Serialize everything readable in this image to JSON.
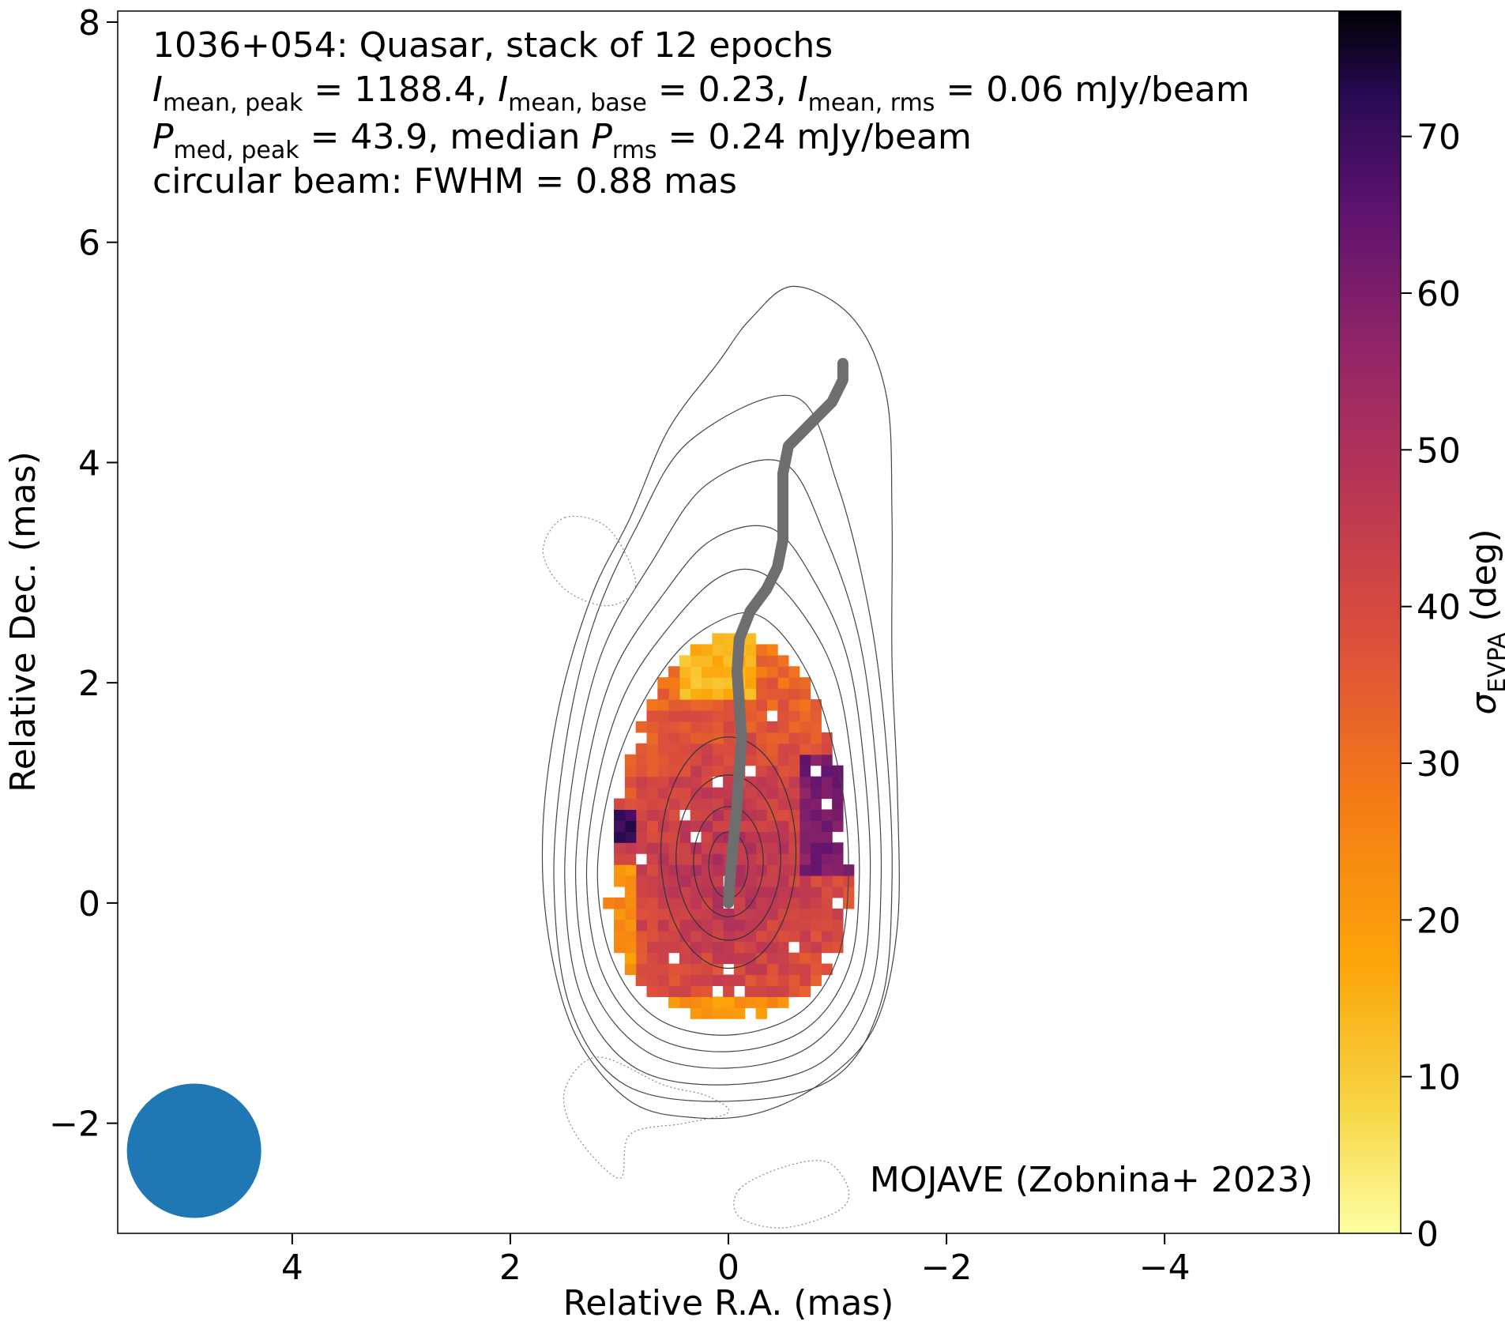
{
  "chart_data": {
    "type": "heatmap",
    "title": "",
    "source": "1036+054: Quasar, stack of 12 epochs",
    "stats": {
      "I_mean_peak": "1188.4",
      "I_mean_base": "0.23",
      "I_mean_rms": "0.06",
      "P_med_peak": "43.9",
      "P_rms_median": "0.24",
      "unit": "mJy/beam",
      "beam_text": "circular beam: FWHM = 0.88 mas"
    },
    "labels": {
      "line2_prefix": "I",
      "line2_sub1": "mean, peak",
      "line2_eq1": " = 1188.4, ",
      "line2_i2": "I",
      "line2_sub2": "mean, base",
      "line2_eq2": " = 0.23, ",
      "line2_i3": "I",
      "line2_sub3": "mean, rms",
      "line2_eq3": " = 0.06 mJy/beam",
      "line3_p1": "P",
      "line3_sub1": "med, peak",
      "line3_eq1": " = 43.9, median ",
      "line3_p2": "P",
      "line3_sub2": "rms",
      "line3_eq2": " = 0.24 mJy/beam"
    },
    "credit": "MOJAVE (Zobnina+ 2023)",
    "xlabel": "Relative R.A. (mas)",
    "ylabel": "Relative Dec. (mas)",
    "colorbar": {
      "label_symbol": "σ",
      "label_sub": "EVPA",
      "label_unit": " (deg)",
      "range": [
        0,
        78
      ],
      "ticks": [
        "0",
        "10",
        "20",
        "30",
        "40",
        "50",
        "60",
        "70"
      ],
      "tick_values": [
        0,
        10,
        20,
        30,
        40,
        50,
        60,
        70
      ],
      "colormap": "inferno_r"
    },
    "xlim": [
      5.6,
      -5.6
    ],
    "ylim": [
      -3.0,
      8.1
    ],
    "x_ticks": [
      "4",
      "2",
      "0",
      "−2",
      "−4"
    ],
    "x_tick_values": [
      4,
      2,
      0,
      -2,
      -4
    ],
    "y_ticks": [
      "−2",
      "0",
      "2",
      "4",
      "6",
      "8"
    ],
    "y_tick_values": [
      -2,
      0,
      2,
      4,
      6,
      8
    ],
    "beam": {
      "x": 4.9,
      "y": -2.25,
      "fwhm_mas": 0.88,
      "color": "#1f77b4"
    },
    "ridgeline": {
      "color": "#6e6e6e",
      "points": [
        [
          0,
          0
        ],
        [
          -0.02,
          0.3
        ],
        [
          -0.05,
          0.6
        ],
        [
          -0.08,
          0.9
        ],
        [
          -0.1,
          1.2
        ],
        [
          -0.12,
          1.5
        ],
        [
          -0.1,
          1.8
        ],
        [
          -0.08,
          2.1
        ],
        [
          -0.1,
          2.4
        ],
        [
          -0.2,
          2.65
        ],
        [
          -0.35,
          2.85
        ],
        [
          -0.45,
          3.05
        ],
        [
          -0.5,
          3.3
        ],
        [
          -0.5,
          3.6
        ],
        [
          -0.5,
          3.9
        ],
        [
          -0.55,
          4.15
        ],
        [
          -0.75,
          4.35
        ],
        [
          -0.95,
          4.55
        ],
        [
          -1.05,
          4.75
        ],
        [
          -1.05,
          4.9
        ]
      ]
    },
    "contours": [
      {
        "level": 1,
        "style": "solid",
        "points": [
          [
            -0.3,
            2.6
          ],
          [
            -0.6,
            2.3
          ],
          [
            -0.85,
            1.8
          ],
          [
            -1.05,
            1.0
          ],
          [
            -1.1,
            0.2
          ],
          [
            -1.0,
            -0.5
          ],
          [
            -0.65,
            -1.0
          ],
          [
            0.0,
            -1.2
          ],
          [
            0.65,
            -1.05
          ],
          [
            1.05,
            -0.55
          ],
          [
            1.2,
            0.2
          ],
          [
            1.1,
            1.0
          ],
          [
            0.85,
            1.7
          ],
          [
            0.45,
            2.3
          ],
          [
            0.0,
            2.6
          ]
        ]
      },
      {
        "level": 2,
        "style": "solid",
        "points": [
          [
            -0.3,
            3.0
          ],
          [
            -0.7,
            2.6
          ],
          [
            -1.0,
            2.0
          ],
          [
            -1.15,
            1.1
          ],
          [
            -1.2,
            0.2
          ],
          [
            -1.1,
            -0.6
          ],
          [
            -0.7,
            -1.15
          ],
          [
            0.0,
            -1.35
          ],
          [
            0.7,
            -1.2
          ],
          [
            1.15,
            -0.65
          ],
          [
            1.3,
            0.2
          ],
          [
            1.2,
            1.1
          ],
          [
            0.95,
            1.9
          ],
          [
            0.55,
            2.5
          ],
          [
            0.1,
            2.95
          ]
        ]
      },
      {
        "level": 3,
        "style": "solid",
        "points": [
          [
            -0.4,
            3.4
          ],
          [
            -0.8,
            2.9
          ],
          [
            -1.1,
            2.2
          ],
          [
            -1.25,
            1.2
          ],
          [
            -1.3,
            0.2
          ],
          [
            -1.2,
            -0.7
          ],
          [
            -0.75,
            -1.3
          ],
          [
            0.0,
            -1.5
          ],
          [
            0.75,
            -1.35
          ],
          [
            1.25,
            -0.75
          ],
          [
            1.4,
            0.2
          ],
          [
            1.3,
            1.2
          ],
          [
            1.05,
            2.1
          ],
          [
            0.6,
            2.8
          ],
          [
            0.15,
            3.3
          ]
        ]
      },
      {
        "level": 4,
        "style": "solid",
        "points": [
          [
            -0.5,
            4.0
          ],
          [
            -0.9,
            3.3
          ],
          [
            -1.2,
            2.4
          ],
          [
            -1.35,
            1.3
          ],
          [
            -1.4,
            0.2
          ],
          [
            -1.3,
            -0.8
          ],
          [
            -0.85,
            -1.45
          ],
          [
            0.0,
            -1.65
          ],
          [
            0.85,
            -1.5
          ],
          [
            1.35,
            -0.85
          ],
          [
            1.5,
            0.2
          ],
          [
            1.4,
            1.3
          ],
          [
            1.15,
            2.3
          ],
          [
            0.7,
            3.1
          ],
          [
            0.2,
            3.8
          ]
        ]
      },
      {
        "level": 5,
        "style": "solid",
        "points": [
          [
            -0.6,
            4.6
          ],
          [
            -1.0,
            3.8
          ],
          [
            -1.3,
            2.6
          ],
          [
            -1.45,
            1.4
          ],
          [
            -1.5,
            0.2
          ],
          [
            -1.4,
            -0.9
          ],
          [
            -0.95,
            -1.6
          ],
          [
            0.0,
            -1.8
          ],
          [
            0.95,
            -1.65
          ],
          [
            1.45,
            -0.95
          ],
          [
            1.6,
            0.2
          ],
          [
            1.5,
            1.4
          ],
          [
            1.25,
            2.5
          ],
          [
            0.85,
            3.4
          ],
          [
            0.35,
            4.2
          ]
        ]
      },
      {
        "level": 6,
        "style": "solid",
        "points": [
          [
            -0.6,
            5.6
          ],
          [
            -1.15,
            5.3
          ],
          [
            -1.45,
            4.6
          ],
          [
            -1.5,
            3.5
          ],
          [
            -1.5,
            2.2
          ],
          [
            -1.55,
            1.0
          ],
          [
            -1.55,
            -0.2
          ],
          [
            -1.35,
            -1.1
          ],
          [
            -0.9,
            -1.6
          ],
          [
            -0.3,
            -1.9
          ],
          [
            0.3,
            -1.95
          ],
          [
            0.9,
            -1.8
          ],
          [
            1.4,
            -1.2
          ],
          [
            1.65,
            -0.3
          ],
          [
            1.7,
            0.7
          ],
          [
            1.55,
            1.8
          ],
          [
            1.25,
            2.8
          ],
          [
            0.9,
            3.5
          ],
          [
            0.55,
            4.3
          ],
          [
            0.1,
            4.9
          ],
          [
            -0.2,
            5.3
          ]
        ]
      },
      {
        "level": 0,
        "style": "dotted",
        "points": [
          [
            1.5,
            3.5
          ],
          [
            1.1,
            3.4
          ],
          [
            0.85,
            2.9
          ],
          [
            1.1,
            2.7
          ],
          [
            1.5,
            2.85
          ],
          [
            1.7,
            3.2
          ]
        ]
      },
      {
        "level": 0,
        "style": "dotted",
        "points": [
          [
            -0.1,
            -2.6
          ],
          [
            -0.5,
            -2.4
          ],
          [
            -0.9,
            -2.35
          ],
          [
            -1.1,
            -2.6
          ],
          [
            -1.0,
            -2.8
          ],
          [
            -0.5,
            -2.95
          ],
          [
            -0.1,
            -2.85
          ]
        ]
      },
      {
        "level": 0,
        "style": "dotted",
        "points": [
          [
            1.2,
            -1.4
          ],
          [
            0.6,
            -1.65
          ],
          [
            0.2,
            -1.75
          ],
          [
            0.0,
            -1.9
          ],
          [
            0.4,
            -2.0
          ],
          [
            0.9,
            -2.1
          ],
          [
            1.0,
            -2.5
          ],
          [
            1.4,
            -2.1
          ],
          [
            1.5,
            -1.7
          ]
        ]
      }
    ],
    "polarization_map": {
      "description": "sigma_EVPA values on 0.1 mas grid",
      "x_range": [
        1.1,
        -1.1
      ],
      "y_range": [
        -1.1,
        2.4
      ]
    }
  }
}
